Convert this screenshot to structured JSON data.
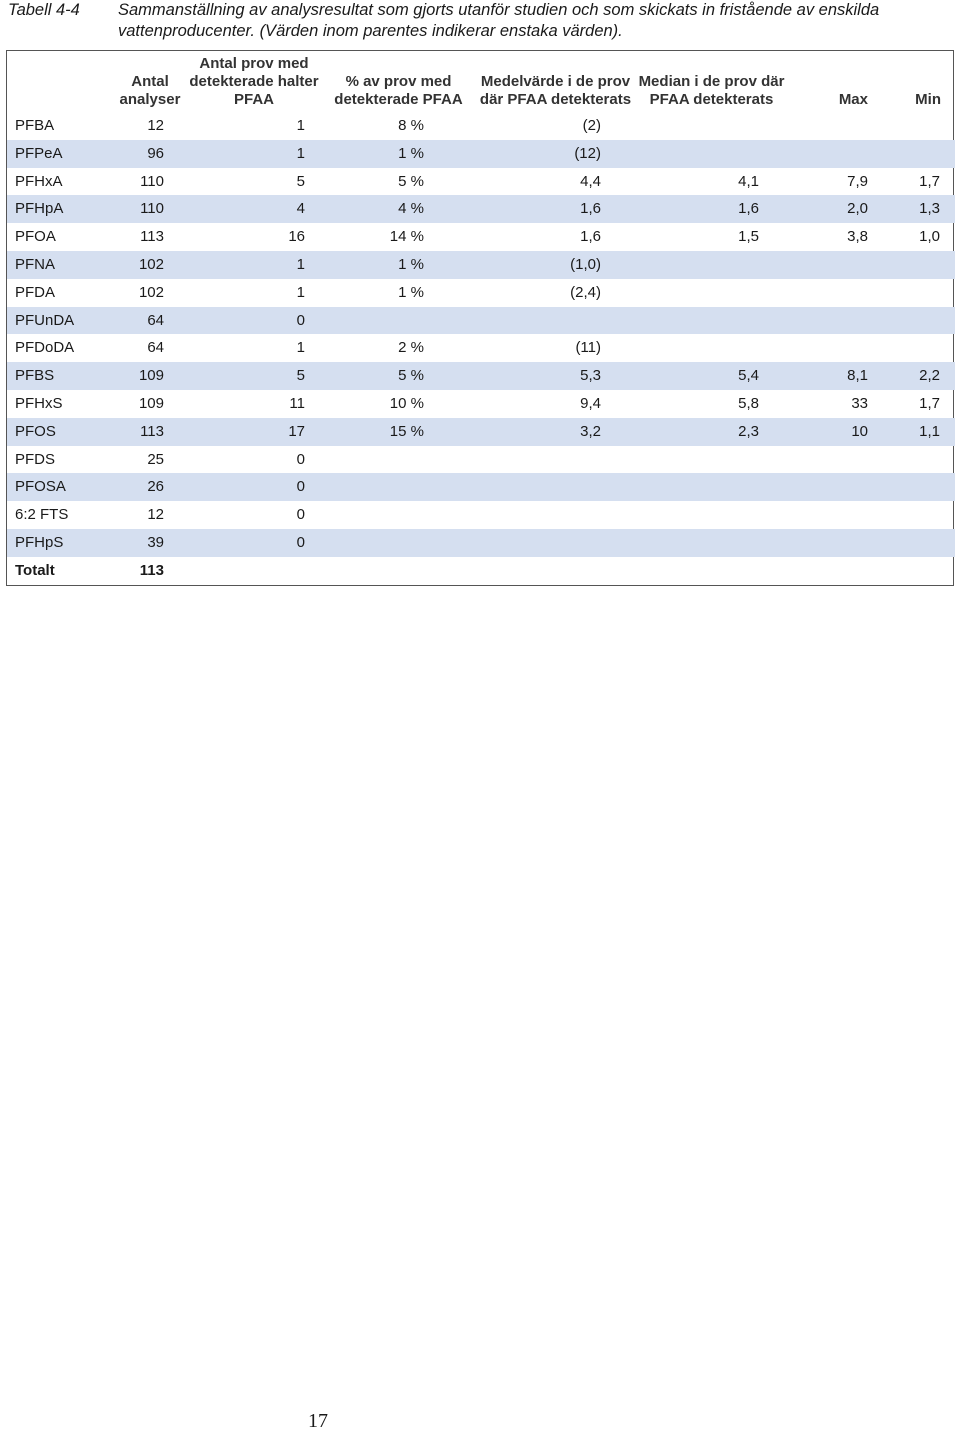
{
  "caption": {
    "label": "Tabell 4-4",
    "text": "Sammanställning av analysresultat som gjorts utanför studien och som skickats in fristående av enskilda vattenproducenter. (Värden inom parentes indikerar enstaka värden)."
  },
  "table": {
    "headers": [
      "",
      "Antal analyser",
      "Antal prov med detekterade halter PFAA",
      "% av prov med detekterade PFAA",
      "Medelvärde i de prov där PFAA detekterats",
      "Median i de prov där PFAA detekterats",
      "Max",
      "Min"
    ],
    "rows": [
      [
        "PFBA",
        "12",
        "1",
        "8 %",
        "(2)",
        "",
        "",
        ""
      ],
      [
        "PFPeA",
        "96",
        "1",
        "1 %",
        "(12)",
        "",
        "",
        ""
      ],
      [
        "PFHxA",
        "110",
        "5",
        "5 %",
        "4,4",
        "4,1",
        "7,9",
        "1,7"
      ],
      [
        "PFHpA",
        "110",
        "4",
        "4 %",
        "1,6",
        "1,6",
        "2,0",
        "1,3"
      ],
      [
        "PFOA",
        "113",
        "16",
        "14 %",
        "1,6",
        "1,5",
        "3,8",
        "1,0"
      ],
      [
        "PFNA",
        "102",
        "1",
        "1 %",
        "(1,0)",
        "",
        "",
        ""
      ],
      [
        "PFDA",
        "102",
        "1",
        "1 %",
        "(2,4)",
        "",
        "",
        ""
      ],
      [
        "PFUnDA",
        "64",
        "0",
        "",
        "",
        "",
        "",
        ""
      ],
      [
        "PFDoDA",
        "64",
        "1",
        "2 %",
        "(11)",
        "",
        "",
        ""
      ],
      [
        "PFBS",
        "109",
        "5",
        "5 %",
        "5,3",
        "5,4",
        "8,1",
        "2,2"
      ],
      [
        "PFHxS",
        "109",
        "11",
        "10 %",
        "9,4",
        "5,8",
        "33",
        "1,7"
      ],
      [
        "PFOS",
        "113",
        "17",
        "15 %",
        "3,2",
        "2,3",
        "10",
        "1,1"
      ],
      [
        "PFDS",
        "25",
        "0",
        "",
        "",
        "",
        "",
        ""
      ],
      [
        "PFOSA",
        "26",
        "0",
        "",
        "",
        "",
        "",
        ""
      ],
      [
        "6:2 FTS",
        "12",
        "0",
        "",
        "",
        "",
        "",
        ""
      ],
      [
        "PFHpS",
        "39",
        "0",
        "",
        "",
        "",
        "",
        ""
      ]
    ],
    "total": [
      "Totalt",
      "113",
      "",
      "",
      "",
      "",
      "",
      ""
    ]
  },
  "page_number": "17"
}
